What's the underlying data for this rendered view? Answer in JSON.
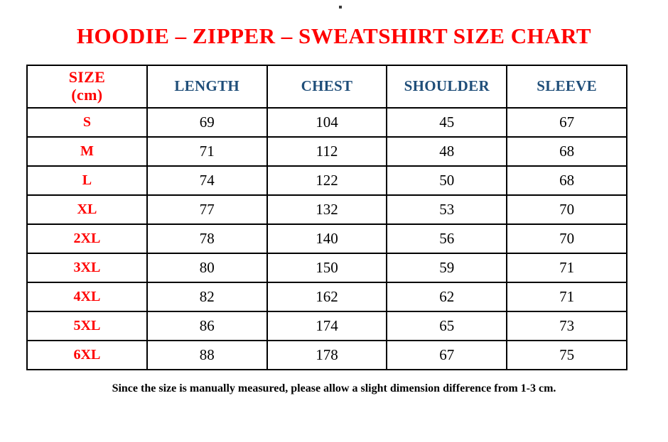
{
  "page": {
    "stray_dot": ".",
    "title": "HOODIE – ZIPPER – SWEATSHIRT SIZE CHART",
    "footer_note": "Since the size is manually measured, please allow a slight dimension difference from 1-3 cm."
  },
  "table": {
    "headers": [
      "SIZE\n(cm)",
      "LENGTH",
      "CHEST",
      "SHOULDER",
      "SLEEVE"
    ],
    "rows": [
      [
        "S",
        "69",
        "104",
        "45",
        "67"
      ],
      [
        "M",
        "71",
        "112",
        "48",
        "68"
      ],
      [
        "L",
        "74",
        "122",
        "50",
        "68"
      ],
      [
        "XL",
        "77",
        "132",
        "53",
        "70"
      ],
      [
        "2XL",
        "78",
        "140",
        "56",
        "70"
      ],
      [
        "3XL",
        "80",
        "150",
        "59",
        "71"
      ],
      [
        "4XL",
        "82",
        "162",
        "62",
        "71"
      ],
      [
        "5XL",
        "86",
        "174",
        "65",
        "73"
      ],
      [
        "6XL",
        "88",
        "178",
        "67",
        "75"
      ]
    ]
  },
  "colors": {
    "title_red": "#ff0000",
    "header_blue": "#1f4e79",
    "text_black": "#000000",
    "border_black": "#000000"
  }
}
